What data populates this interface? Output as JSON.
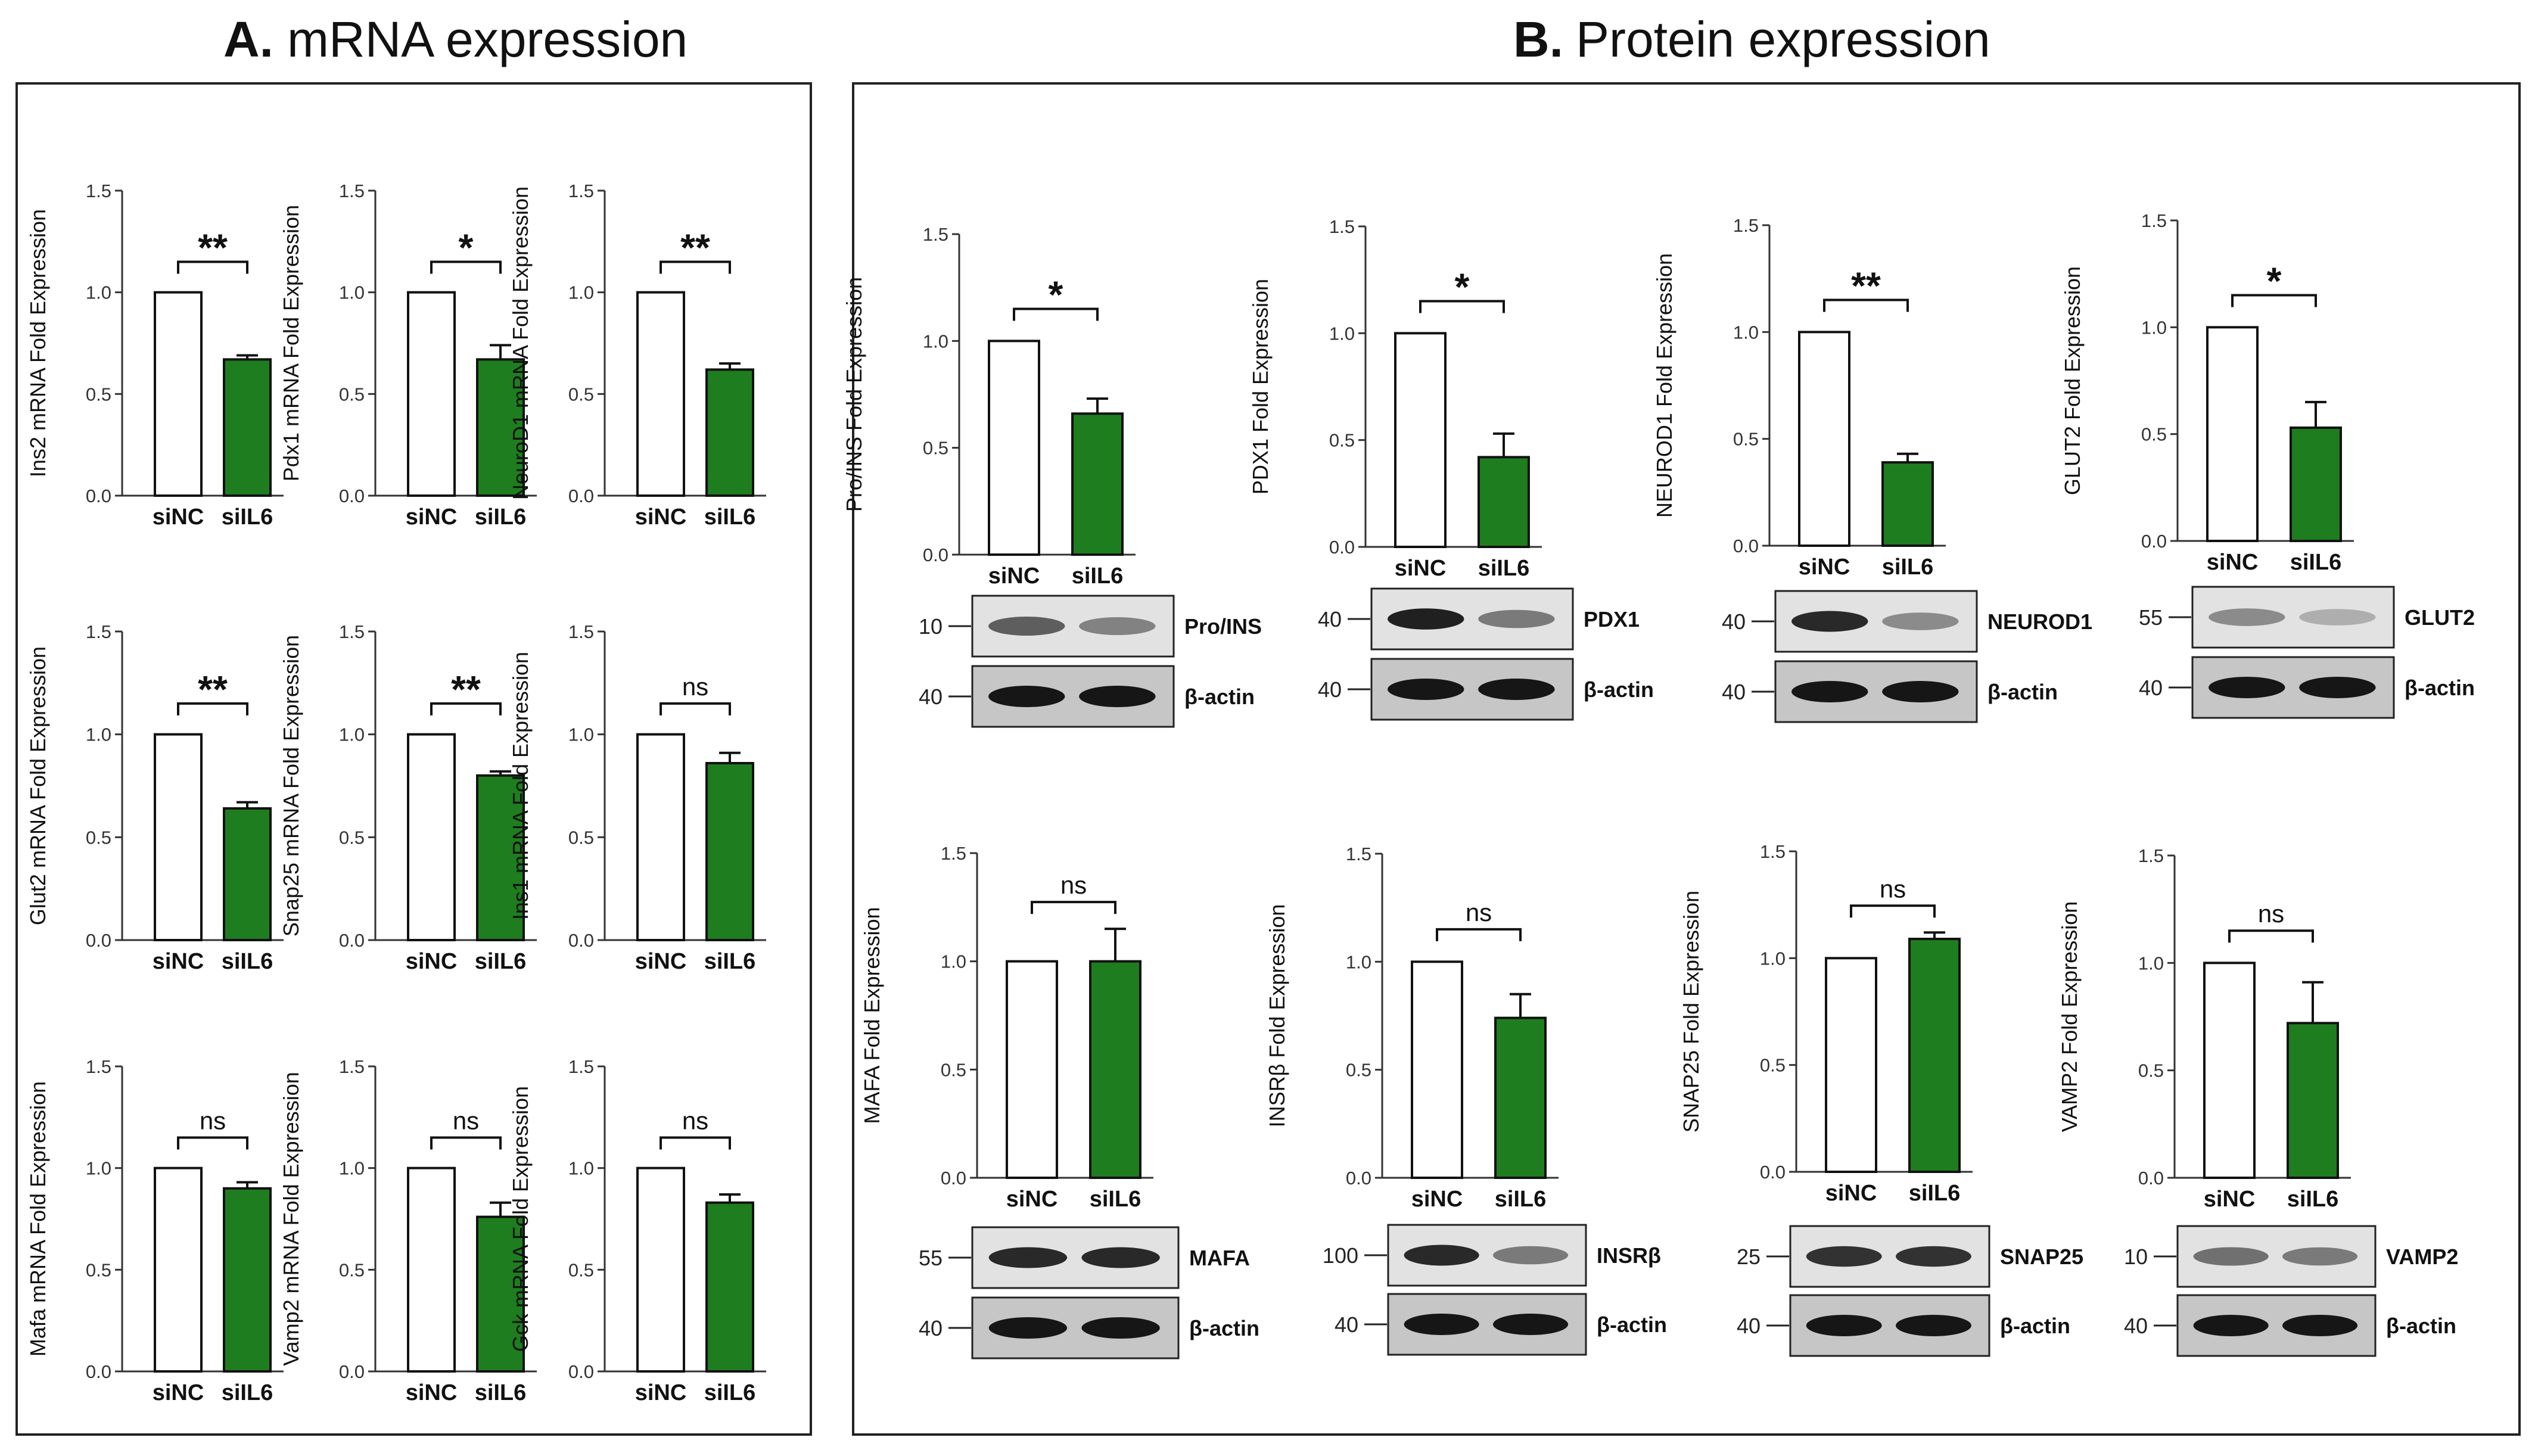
{
  "panel_a": {
    "title_letter": "A.",
    "title_text": "mRNA expression"
  },
  "panel_b": {
    "title_letter": "B.",
    "title_text": "Protein expression"
  },
  "colors": {
    "control": "#ffffff",
    "treated": "#1e7d1e",
    "axis": "#333333",
    "blot_bg": "#d4d4d4",
    "band": "#1a1a1a"
  },
  "chart_data": [
    {
      "type": "bar",
      "panel": "A",
      "ylabel": "Ins2 mRNA Fold Expression",
      "categories": [
        "siNC",
        "siIL6"
      ],
      "values": [
        1.0,
        0.67
      ],
      "errors": [
        0,
        0.02
      ],
      "ylim": [
        0,
        1.5
      ],
      "yticks": [
        "0.0",
        "0.5",
        "1.0",
        "1.5"
      ],
      "significance": "**"
    },
    {
      "type": "bar",
      "panel": "A",
      "ylabel": "Pdx1 mRNA Fold Expression",
      "categories": [
        "siNC",
        "siIL6"
      ],
      "values": [
        1.0,
        0.67
      ],
      "errors": [
        0,
        0.07
      ],
      "ylim": [
        0,
        1.5
      ],
      "yticks": [
        "0.0",
        "0.5",
        "1.0",
        "1.5"
      ],
      "significance": "*"
    },
    {
      "type": "bar",
      "panel": "A",
      "ylabel": "NeuroD1 mRNA Fold Expression",
      "categories": [
        "siNC",
        "siIL6"
      ],
      "values": [
        1.0,
        0.62
      ],
      "errors": [
        0,
        0.03
      ],
      "ylim": [
        0,
        1.5
      ],
      "yticks": [
        "0.0",
        "0.5",
        "1.0",
        "1.5"
      ],
      "significance": "**"
    },
    {
      "type": "bar",
      "panel": "A",
      "ylabel": "Glut2 mRNA Fold Expression",
      "categories": [
        "siNC",
        "siIL6"
      ],
      "values": [
        1.0,
        0.64
      ],
      "errors": [
        0,
        0.03
      ],
      "ylim": [
        0,
        1.5
      ],
      "yticks": [
        "0.0",
        "0.5",
        "1.0",
        "1.5"
      ],
      "significance": "**"
    },
    {
      "type": "bar",
      "panel": "A",
      "ylabel": "Snap25 mRNA Fold Expression",
      "categories": [
        "siNC",
        "siIL6"
      ],
      "values": [
        1.0,
        0.8
      ],
      "errors": [
        0,
        0.02
      ],
      "ylim": [
        0,
        1.5
      ],
      "yticks": [
        "0.0",
        "0.5",
        "1.0",
        "1.5"
      ],
      "significance": "**"
    },
    {
      "type": "bar",
      "panel": "A",
      "ylabel": "Ins1 mRNA Fold Expression",
      "categories": [
        "siNC",
        "siIL6"
      ],
      "values": [
        1.0,
        0.86
      ],
      "errors": [
        0,
        0.05
      ],
      "ylim": [
        0,
        1.5
      ],
      "yticks": [
        "0.0",
        "0.5",
        "1.0",
        "1.5"
      ],
      "significance": "ns"
    },
    {
      "type": "bar",
      "panel": "A",
      "ylabel": "Mafa mRNA Fold Expression",
      "categories": [
        "siNC",
        "siIL6"
      ],
      "values": [
        1.0,
        0.9
      ],
      "errors": [
        0,
        0.03
      ],
      "ylim": [
        0,
        1.5
      ],
      "yticks": [
        "0.0",
        "0.5",
        "1.0",
        "1.5"
      ],
      "significance": "ns"
    },
    {
      "type": "bar",
      "panel": "A",
      "ylabel": "Vamp2 mRNA Fold Expression",
      "categories": [
        "siNC",
        "siIL6"
      ],
      "values": [
        1.0,
        0.76
      ],
      "errors": [
        0,
        0.07
      ],
      "ylim": [
        0,
        1.5
      ],
      "yticks": [
        "0.0",
        "0.5",
        "1.0",
        "1.5"
      ],
      "significance": "ns"
    },
    {
      "type": "bar",
      "panel": "A",
      "ylabel": "Gck mRNA Fold Expression",
      "categories": [
        "siNC",
        "siIL6"
      ],
      "values": [
        1.0,
        0.83
      ],
      "errors": [
        0,
        0.04
      ],
      "ylim": [
        0,
        1.5
      ],
      "yticks": [
        "0.0",
        "0.5",
        "1.0",
        "1.5"
      ],
      "significance": "ns"
    },
    {
      "type": "bar",
      "panel": "B",
      "ylabel": "Pro/INS Fold Expression",
      "categories": [
        "siNC",
        "siIL6"
      ],
      "values": [
        1.0,
        0.66
      ],
      "errors": [
        0,
        0.07
      ],
      "ylim": [
        0,
        1.5
      ],
      "yticks": [
        "0.0",
        "0.5",
        "1.0",
        "1.5"
      ],
      "significance": "*"
    },
    {
      "type": "bar",
      "panel": "B",
      "ylabel": "PDX1 Fold Expression",
      "categories": [
        "siNC",
        "siIL6"
      ],
      "values": [
        1.0,
        0.42
      ],
      "errors": [
        0,
        0.11
      ],
      "ylim": [
        0,
        1.5
      ],
      "yticks": [
        "0.0",
        "0.5",
        "1.0",
        "1.5"
      ],
      "significance": "*"
    },
    {
      "type": "bar",
      "panel": "B",
      "ylabel": "NEUROD1 Fold Expression",
      "categories": [
        "siNC",
        "siIL6"
      ],
      "values": [
        1.0,
        0.39
      ],
      "errors": [
        0,
        0.04
      ],
      "ylim": [
        0,
        1.5
      ],
      "yticks": [
        "0.0",
        "0.5",
        "1.0",
        "1.5"
      ],
      "significance": "**"
    },
    {
      "type": "bar",
      "panel": "B",
      "ylabel": "GLUT2 Fold Expression",
      "categories": [
        "siNC",
        "siIL6"
      ],
      "values": [
        1.0,
        0.53
      ],
      "errors": [
        0,
        0.12
      ],
      "ylim": [
        0,
        1.5
      ],
      "yticks": [
        "0.0",
        "0.5",
        "1.0",
        "1.5"
      ],
      "significance": "*"
    },
    {
      "type": "bar",
      "panel": "B",
      "ylabel": "MAFA Fold Expression",
      "categories": [
        "siNC",
        "siIL6"
      ],
      "values": [
        1.0,
        1.0
      ],
      "errors": [
        0,
        0.15
      ],
      "ylim": [
        0,
        1.5
      ],
      "yticks": [
        "0.0",
        "0.5",
        "1.0",
        "1.5"
      ],
      "significance": "ns"
    },
    {
      "type": "bar",
      "panel": "B",
      "ylabel": "INSRβ Fold Expression",
      "categories": [
        "siNC",
        "siIL6"
      ],
      "values": [
        1.0,
        0.74
      ],
      "errors": [
        0,
        0.11
      ],
      "ylim": [
        0,
        1.5
      ],
      "yticks": [
        "0.0",
        "0.5",
        "1.0",
        "1.5"
      ],
      "significance": "ns"
    },
    {
      "type": "bar",
      "panel": "B",
      "ylabel": "SNAP25 Fold Expression",
      "categories": [
        "siNC",
        "siIL6"
      ],
      "values": [
        1.0,
        1.09
      ],
      "errors": [
        0,
        0.03
      ],
      "ylim": [
        0,
        1.5
      ],
      "yticks": [
        "0.0",
        "0.5",
        "1.0",
        "1.5"
      ],
      "significance": "ns"
    },
    {
      "type": "bar",
      "panel": "B",
      "ylabel": "VAMP2 Fold Expression",
      "categories": [
        "siNC",
        "siIL6"
      ],
      "values": [
        1.0,
        0.72
      ],
      "errors": [
        0,
        0.19
      ],
      "ylim": [
        0,
        1.5
      ],
      "yticks": [
        "0.0",
        "0.5",
        "1.0",
        "1.5"
      ],
      "significance": "ns"
    }
  ],
  "blots": [
    {
      "target": "Pro/INS",
      "target_mw": "10",
      "control": "β-actin",
      "control_mw": "40",
      "band_intensity": [
        0.6,
        0.4
      ]
    },
    {
      "target": "PDX1",
      "target_mw": "40",
      "control": "β-actin",
      "control_mw": "40",
      "band_intensity": [
        0.95,
        0.45
      ]
    },
    {
      "target": "NEUROD1",
      "target_mw": "40",
      "control": "β-actin",
      "control_mw": "40",
      "band_intensity": [
        0.9,
        0.35
      ]
    },
    {
      "target": "GLUT2",
      "target_mw": "55",
      "control": "β-actin",
      "control_mw": "40",
      "band_intensity": [
        0.35,
        0.15
      ]
    },
    {
      "target": "MAFA",
      "target_mw": "55",
      "control": "β-actin",
      "control_mw": "40",
      "band_intensity": [
        0.9,
        0.9
      ]
    },
    {
      "target": "INSRβ",
      "target_mw": "100",
      "control": "β-actin",
      "control_mw": "40",
      "band_intensity": [
        0.9,
        0.45
      ]
    },
    {
      "target": "SNAP25",
      "target_mw": "25",
      "control": "β-actin",
      "control_mw": "40",
      "band_intensity": [
        0.85,
        0.85
      ]
    },
    {
      "target": "VAMP2",
      "target_mw": "10",
      "control": "β-actin",
      "control_mw": "40",
      "band_intensity": [
        0.5,
        0.45
      ]
    }
  ]
}
